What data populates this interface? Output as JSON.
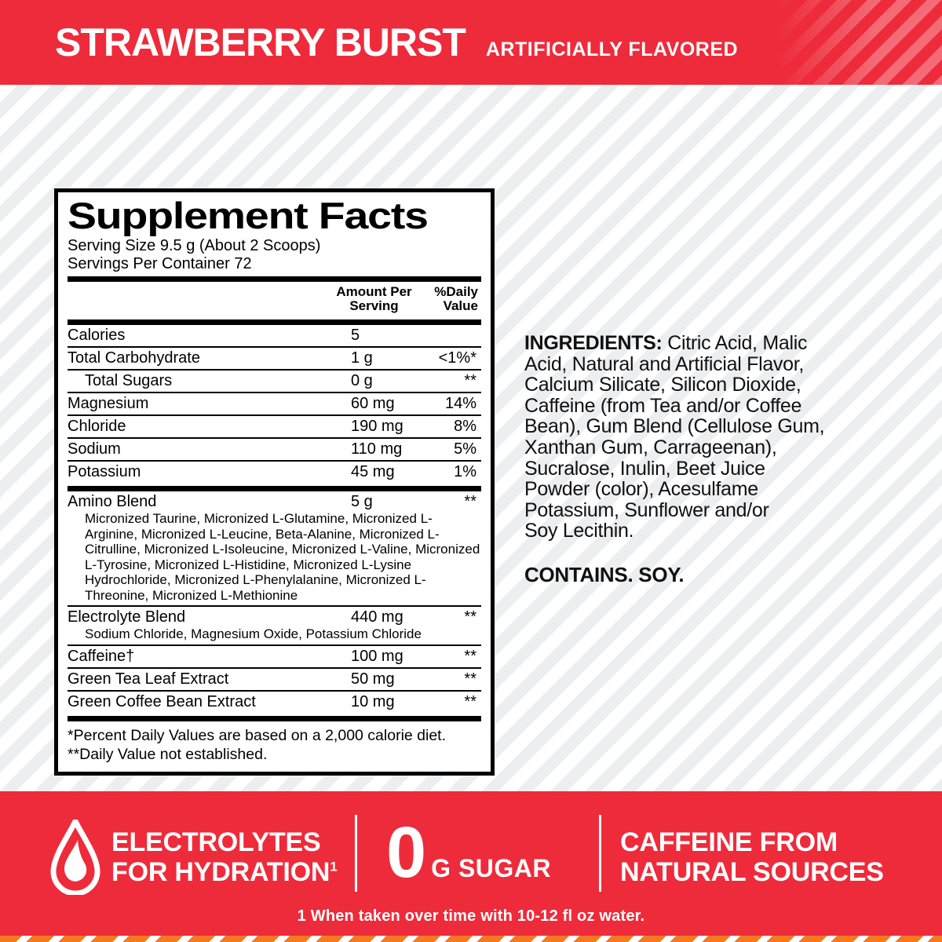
{
  "colors": {
    "brand_red": "#EE2B3B",
    "accent_orange": "#F47920",
    "background_stripe_gray": "#ECEEF0",
    "text_black": "#000000",
    "text_white": "#FFFFFF"
  },
  "top_banner": {
    "title": "STRAWBERRY BURST",
    "subtitle": "ARTIFICIALLY FLAVORED"
  },
  "supplement_facts": {
    "title": "Supplement Facts",
    "serving_size": "Serving Size 9.5 g (About 2 Scoops)",
    "servings_per_container": "Servings Per Container 72",
    "columns": {
      "amount_line1": "Amount Per",
      "amount_line2": "Serving",
      "dv_line1": "%Daily",
      "dv_line2": "Value"
    },
    "nutrient_rows": [
      {
        "name": "Calories",
        "amount": "5",
        "dv": "",
        "indent": false
      },
      {
        "name": "Total Carbohydrate",
        "amount": "1 g",
        "dv": "<1%*",
        "indent": false
      },
      {
        "name": "Total Sugars",
        "amount": "0 g",
        "dv": "**",
        "indent": true
      },
      {
        "name": "Magnesium",
        "amount": "60 mg",
        "dv": "14%",
        "indent": false
      },
      {
        "name": "Chloride",
        "amount": "190 mg",
        "dv": "8%",
        "indent": false
      },
      {
        "name": "Sodium",
        "amount": "110 mg",
        "dv": "5%",
        "indent": false
      },
      {
        "name": "Potassium",
        "amount": "45 mg",
        "dv": "1%",
        "indent": false
      }
    ],
    "blend_rows": [
      {
        "name": "Amino Blend",
        "amount": "5 g",
        "dv": "**",
        "sub": "Micronized Taurine, Micronized L-Glutamine, Micronized L-Arginine, Micronized L-Leucine, Beta-Alanine, Micronized L-Citrulline, Micronized L-Isoleucine, Micronized L-Valine, Micronized L-Tyrosine, Micronized L-Histidine, Micronized L-Lysine Hydrochloride, Micronized L-Phenylalanine, Micronized L-Threonine, Micronized L-Methionine"
      },
      {
        "name": "Electrolyte Blend",
        "amount": "440 mg",
        "dv": "**",
        "sub": "Sodium Chloride, Magnesium Oxide, Potassium Chloride"
      },
      {
        "name": "Caffeine†",
        "amount": "100 mg",
        "dv": "**",
        "sub": ""
      },
      {
        "name": "Green Tea Leaf Extract",
        "amount": "50 mg",
        "dv": "**",
        "sub": ""
      },
      {
        "name": "Green Coffee Bean Extract",
        "amount": "10 mg",
        "dv": "**",
        "sub": ""
      }
    ],
    "footnotes": [
      "*Percent Daily Values are based on a 2,000 calorie diet.",
      "**Daily Value not established."
    ]
  },
  "ingredients": {
    "heading": "INGREDIENTS:",
    "lines": [
      "Citric Acid, Malic",
      "Acid, Natural and Artificial Flavor,",
      "Calcium Silicate, Silicon Dioxide,",
      "Caffeine (from Tea and/or Coffee",
      "Bean), Gum Blend (Cellulose Gum,",
      "Xanthan Gum, Carrageenan),",
      "Sucralose, Inulin, Beet Juice",
      "Powder (color), Acesulfame",
      "Potassium, Sunflower and/or",
      "Soy Lecithin."
    ],
    "contains": "CONTAINS. SOY."
  },
  "bottom_banner": {
    "feature_hydration_line1": "ELECTROLYTES",
    "feature_hydration_line2": "FOR HYDRATION",
    "feature_hydration_footnote_marker": "1",
    "sugar_value": "0",
    "sugar_unit": "G SUGAR",
    "feature_caffeine_line1": "CAFFEINE FROM",
    "feature_caffeine_line2": "NATURAL SOURCES",
    "footnote": "1 When taken over time with 10-12 fl oz water."
  }
}
